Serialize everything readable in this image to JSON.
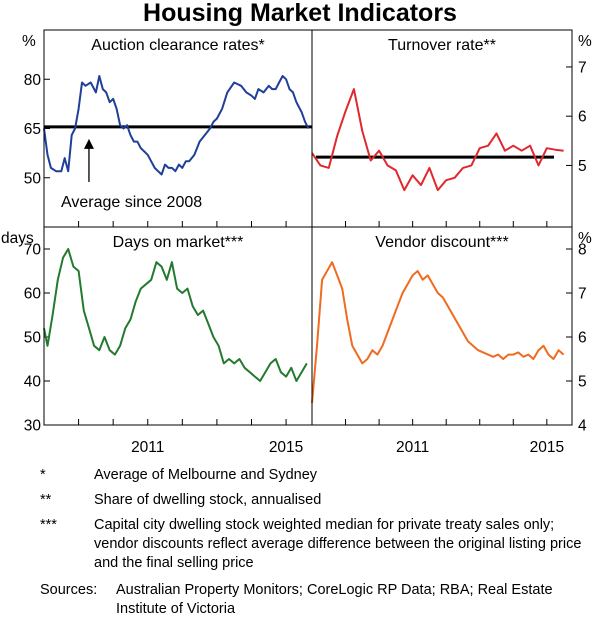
{
  "title": "Housing Market Indicators",
  "colors": {
    "blue": "#1f3f99",
    "red": "#e0282e",
    "green": "#237a2f",
    "orange": "#f06a1f",
    "avg": "#000000"
  },
  "chart_data": [
    {
      "type": "line",
      "title": "Auction clearance rates*",
      "unit": "%",
      "ylim": [
        35,
        95
      ],
      "yticks": [
        50,
        65,
        80
      ],
      "xlim": [
        2008.0,
        2015.75
      ],
      "color": "#1f3f99",
      "average_line": 65.5,
      "annotation": "Average since 2008",
      "annotation_x": 2009.3,
      "x": [
        2008.0,
        2008.1,
        2008.2,
        2008.35,
        2008.5,
        2008.6,
        2008.7,
        2008.8,
        2008.9,
        2009.0,
        2009.1,
        2009.2,
        2009.35,
        2009.5,
        2009.6,
        2009.7,
        2009.8,
        2009.9,
        2010.0,
        2010.1,
        2010.2,
        2010.3,
        2010.4,
        2010.5,
        2010.6,
        2010.7,
        2010.8,
        2010.9,
        2011.0,
        2011.1,
        2011.2,
        2011.3,
        2011.4,
        2011.5,
        2011.6,
        2011.7,
        2011.8,
        2011.9,
        2012.0,
        2012.1,
        2012.2,
        2012.35,
        2012.5,
        2012.65,
        2012.8,
        2012.9,
        2013.0,
        2013.15,
        2013.3,
        2013.5,
        2013.7,
        2013.85,
        2014.0,
        2014.1,
        2014.2,
        2014.35,
        2014.5,
        2014.6,
        2014.7,
        2014.8,
        2014.9,
        2015.0,
        2015.1,
        2015.2,
        2015.3,
        2015.45,
        2015.55,
        2015.65
      ],
      "values": [
        65,
        57,
        53,
        52,
        52,
        56,
        52,
        63,
        65,
        71,
        79,
        78,
        79,
        76,
        81,
        77,
        76,
        73,
        74,
        71,
        66,
        65,
        66,
        63,
        61,
        61,
        59,
        58,
        57,
        55,
        53,
        52,
        51,
        54,
        53,
        53,
        52,
        54,
        53,
        55,
        55,
        57,
        61,
        63,
        65,
        67,
        68,
        71,
        76,
        79,
        78,
        76,
        75,
        74,
        77,
        76,
        78,
        77,
        77,
        79,
        81,
        80,
        77,
        76,
        73,
        70,
        67,
        65
      ]
    },
    {
      "type": "line",
      "title": "Turnover rate**",
      "unit": "%",
      "ylim": [
        3.75,
        7.75
      ],
      "yticks": [
        5,
        6,
        7
      ],
      "xlim": [
        2008.0,
        2015.75
      ],
      "color": "#e0282e",
      "average_line": 5.17,
      "x": [
        2008.0,
        2008.25,
        2008.5,
        2008.75,
        2009.0,
        2009.25,
        2009.5,
        2009.75,
        2010.0,
        2010.25,
        2010.5,
        2010.75,
        2011.0,
        2011.25,
        2011.5,
        2011.75,
        2012.0,
        2012.25,
        2012.5,
        2012.75,
        2013.0,
        2013.25,
        2013.5,
        2013.75,
        2014.0,
        2014.25,
        2014.5,
        2014.75,
        2015.0,
        2015.25,
        2015.5
      ],
      "values": [
        5.25,
        5.0,
        4.95,
        5.6,
        6.1,
        6.55,
        5.7,
        5.1,
        5.3,
        5.0,
        4.9,
        4.5,
        4.8,
        4.6,
        4.95,
        4.5,
        4.7,
        4.75,
        4.95,
        5.0,
        5.35,
        5.4,
        5.65,
        5.3,
        5.4,
        5.3,
        5.4,
        5.0,
        5.35,
        5.32,
        5.3
      ]
    },
    {
      "type": "line",
      "title": "Days on market***",
      "unit": "days",
      "ylim": [
        30,
        75
      ],
      "yticks": [
        30,
        40,
        50,
        60,
        70
      ],
      "xlim": [
        2008.0,
        2015.75
      ],
      "color": "#237a2f",
      "x": [
        2008.0,
        2008.1,
        2008.25,
        2008.4,
        2008.55,
        2008.7,
        2008.85,
        2009.0,
        2009.15,
        2009.3,
        2009.45,
        2009.6,
        2009.75,
        2009.9,
        2010.05,
        2010.2,
        2010.35,
        2010.5,
        2010.65,
        2010.8,
        2010.95,
        2011.1,
        2011.25,
        2011.4,
        2011.55,
        2011.7,
        2011.85,
        2012.0,
        2012.15,
        2012.3,
        2012.45,
        2012.6,
        2012.75,
        2012.9,
        2013.05,
        2013.2,
        2013.35,
        2013.5,
        2013.65,
        2013.8,
        2013.95,
        2014.1,
        2014.25,
        2014.4,
        2014.55,
        2014.7,
        2014.85,
        2015.0,
        2015.15,
        2015.3,
        2015.45,
        2015.6
      ],
      "values": [
        52,
        48,
        55,
        63,
        68,
        70,
        66,
        65,
        56,
        52,
        48,
        47,
        50,
        47,
        46,
        48,
        52,
        54,
        58,
        61,
        62,
        63,
        67,
        66,
        63,
        67,
        61,
        60,
        61,
        57,
        55,
        56,
        53,
        50,
        48,
        44,
        45,
        44,
        45,
        43,
        42,
        41,
        40,
        42,
        44,
        45,
        42,
        41,
        43,
        40,
        42,
        44
      ]
    },
    {
      "type": "line",
      "title": "Vendor discount***",
      "unit": "%",
      "ylim": [
        4,
        8.5
      ],
      "yticks": [
        4,
        5,
        6,
        7,
        8
      ],
      "xlim": [
        2008.0,
        2015.75
      ],
      "color": "#f06a1f",
      "x": [
        2008.0,
        2008.15,
        2008.3,
        2008.45,
        2008.6,
        2008.75,
        2008.9,
        2009.05,
        2009.2,
        2009.35,
        2009.5,
        2009.65,
        2009.8,
        2009.95,
        2010.1,
        2010.25,
        2010.4,
        2010.55,
        2010.7,
        2010.85,
        2011.0,
        2011.15,
        2011.3,
        2011.45,
        2011.6,
        2011.75,
        2011.9,
        2012.05,
        2012.2,
        2012.35,
        2012.5,
        2012.65,
        2012.8,
        2012.95,
        2013.1,
        2013.25,
        2013.4,
        2013.55,
        2013.7,
        2013.85,
        2014.0,
        2014.15,
        2014.3,
        2014.45,
        2014.6,
        2014.75,
        2014.9,
        2015.05,
        2015.2,
        2015.35,
        2015.5
      ],
      "values": [
        4.5,
        5.8,
        7.3,
        7.5,
        7.7,
        7.4,
        7.1,
        6.4,
        5.8,
        5.6,
        5.4,
        5.5,
        5.7,
        5.6,
        5.8,
        6.1,
        6.4,
        6.7,
        7.0,
        7.2,
        7.4,
        7.5,
        7.3,
        7.4,
        7.2,
        7.0,
        6.9,
        6.7,
        6.5,
        6.3,
        6.1,
        5.9,
        5.8,
        5.7,
        5.65,
        5.6,
        5.55,
        5.6,
        5.5,
        5.6,
        5.6,
        5.65,
        5.55,
        5.6,
        5.5,
        5.7,
        5.8,
        5.6,
        5.5,
        5.7,
        5.6
      ]
    }
  ],
  "x_ticks": [
    "2011",
    "2015"
  ],
  "notes": [
    {
      "marker": "*",
      "text": "Average of Melbourne and Sydney"
    },
    {
      "marker": "**",
      "text": "Share of dwelling stock, annualised"
    },
    {
      "marker": "***",
      "text": "Capital city dwelling stock weighted median for private treaty sales only; vendor discounts reflect average difference between the original listing price and the final selling price"
    }
  ],
  "sources_label": "Sources:",
  "sources": "Australian Property Monitors; CoreLogic RP Data; RBA; Real Estate Institute of Victoria"
}
